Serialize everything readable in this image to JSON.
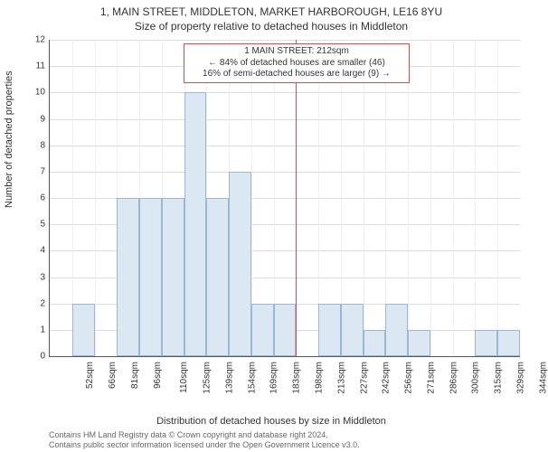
{
  "title": "1, MAIN STREET, MIDDLETON, MARKET HARBOROUGH, LE16 8YU",
  "subtitle": "Size of property relative to detached houses in Middleton",
  "y_axis_label": "Number of detached properties",
  "x_axis_label": "Distribution of detached houses by size in Middleton",
  "footer_line1": "Contains HM Land Registry data © Crown copyright and database right 2024.",
  "footer_line2": "Contains public sector information licensed under the Open Government Licence v3.0.",
  "chart": {
    "type": "histogram",
    "background_color": "#ffffff",
    "grid_color": "#dcdcdc",
    "axis_color": "#565656",
    "bar_fill": "#dbe7f3",
    "bar_stroke": "#9bb8d3",
    "marker_color": "#d94a4a",
    "ylim": [
      0,
      12
    ],
    "ytick_step": 1,
    "label_fontsize": 11,
    "tick_fontsize": 10,
    "title_fontsize": 12,
    "x_ticks": [
      "52sqm",
      "66sqm",
      "81sqm",
      "96sqm",
      "110sqm",
      "125sqm",
      "139sqm",
      "154sqm",
      "169sqm",
      "183sqm",
      "198sqm",
      "213sqm",
      "227sqm",
      "242sqm",
      "256sqm",
      "271sqm",
      "286sqm",
      "300sqm",
      "315sqm",
      "329sqm",
      "344sqm"
    ],
    "values": [
      0,
      2,
      0,
      6,
      6,
      6,
      10,
      6,
      7,
      2,
      2,
      0,
      2,
      2,
      1,
      2,
      1,
      0,
      0,
      1,
      1
    ],
    "marker_index": 11,
    "annotation": {
      "line1": "1 MAIN STREET: 212sqm",
      "line2": "← 84% of detached houses are smaller (46)",
      "line3": "16% of semi-detached houses are larger (9) →"
    }
  }
}
